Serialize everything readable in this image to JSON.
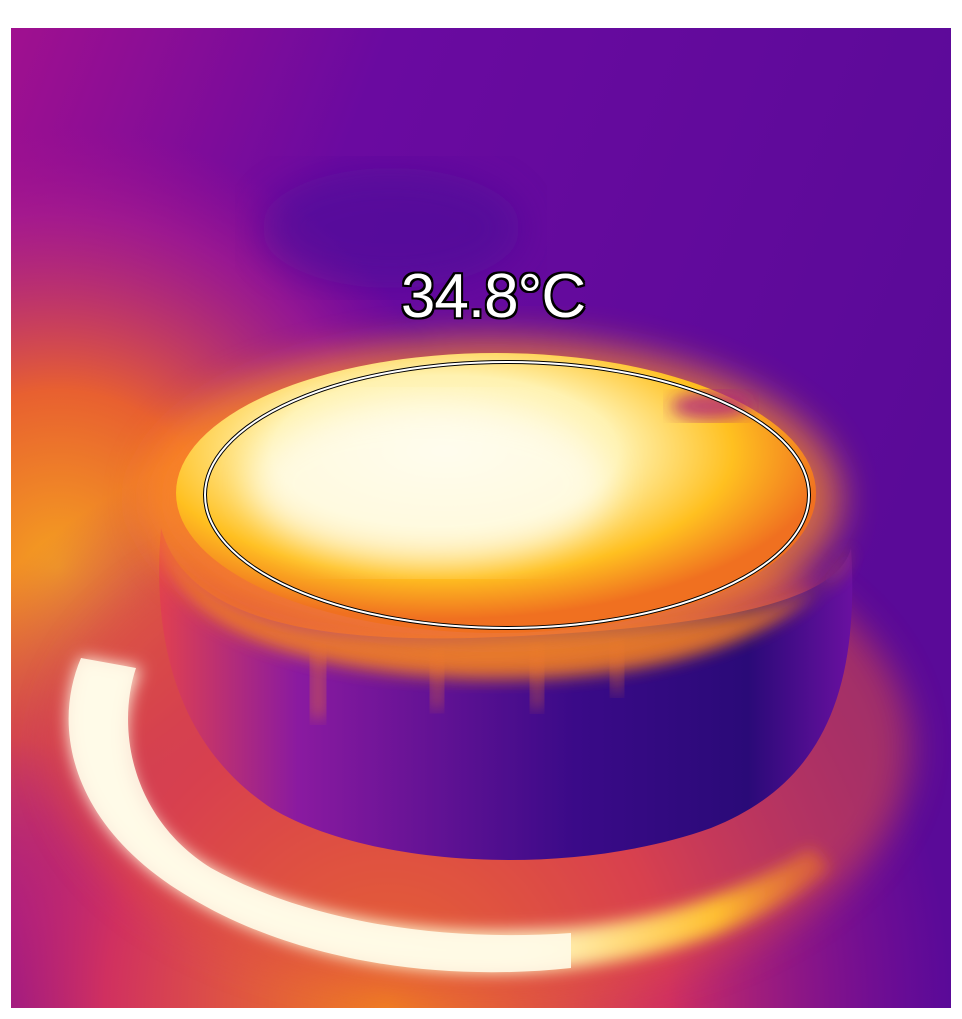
{
  "measurement": {
    "temperature_label": "34.8°C",
    "marker_shape": "ellipse",
    "marker_color": "#ffffff"
  },
  "palette": {
    "coolest": "#2a0a7a",
    "cool": "#5a0aa0",
    "mid": "#b01090",
    "warm": "#f06020",
    "hot": "#ffc020",
    "hottest": "#fffbe0"
  }
}
